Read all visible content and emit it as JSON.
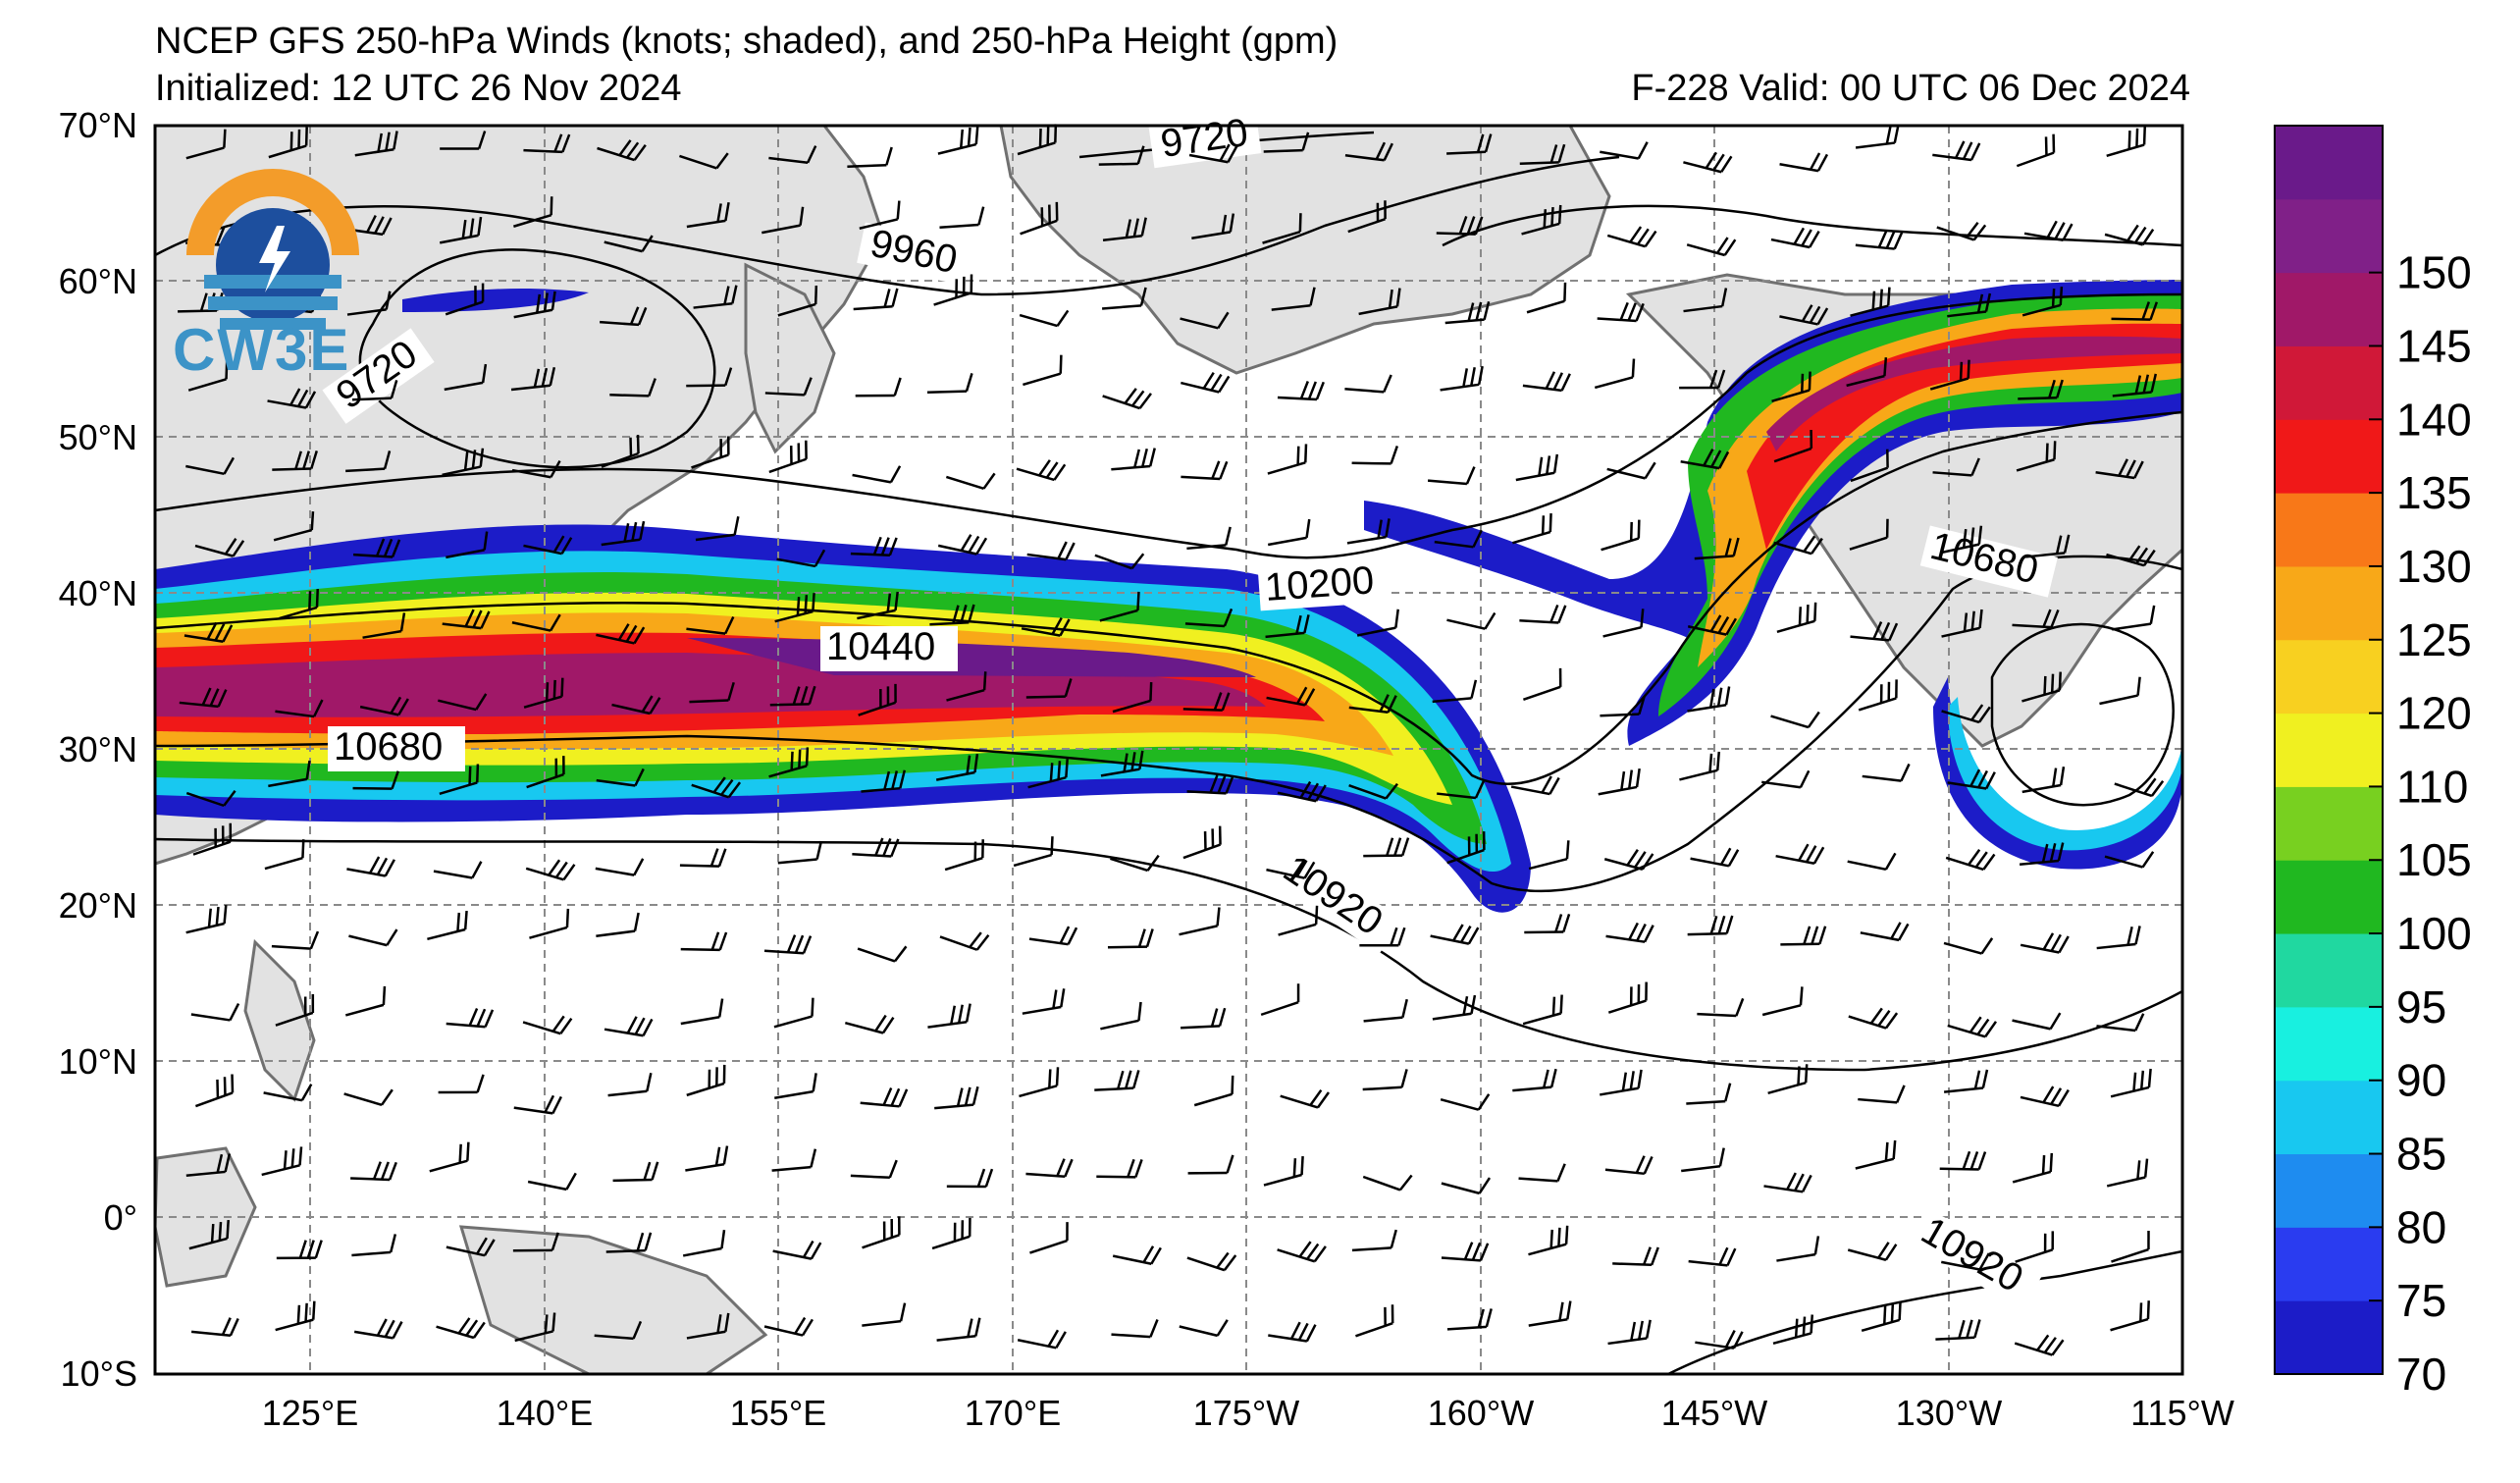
{
  "title": {
    "line1": "NCEP GFS 250-hPa Winds (knots; shaded), and 250-hPa Height (gpm)",
    "initialized": "Initialized: 12 UTC 26 Nov 2024",
    "valid": "F-228  Valid: 00 UTC 06 Dec 2024"
  },
  "logo": {
    "text": "CW3E"
  },
  "axes": {
    "lat_labels": [
      "70°N",
      "60°N",
      "50°N",
      "40°N",
      "30°N",
      "20°N",
      "10°N",
      "0°",
      "10°S"
    ],
    "lon_labels": [
      "125°E",
      "140°E",
      "155°E",
      "170°E",
      "175°W",
      "160°W",
      "145°W",
      "130°W",
      "115°W"
    ]
  },
  "contours": [
    {
      "label": "9720"
    },
    {
      "label": "9960"
    },
    {
      "label": "9720"
    },
    {
      "label": "10200"
    },
    {
      "label": "10440"
    },
    {
      "label": "10680"
    },
    {
      "label": "10680"
    },
    {
      "label": "10920"
    },
    {
      "label": "10920"
    }
  ],
  "colorbar": {
    "ticks": [
      "70",
      "75",
      "80",
      "85",
      "90",
      "95",
      "100",
      "105",
      "110",
      "120",
      "125",
      "130",
      "135",
      "140",
      "145",
      "150"
    ],
    "colors": [
      "#1c1cc8",
      "#2a3cf0",
      "#1e8cf0",
      "#18c8f0",
      "#18f0e0",
      "#20d8a0",
      "#20b820",
      "#78d020",
      "#f0f020",
      "#f8d020",
      "#f8a818",
      "#f87818",
      "#f01818",
      "#d01838",
      "#a01868",
      "#802088",
      "#6a1a8a"
    ]
  },
  "colors": {
    "land": "#e2e2e2",
    "coast": "#707070",
    "grid": "#8a8a8a"
  }
}
